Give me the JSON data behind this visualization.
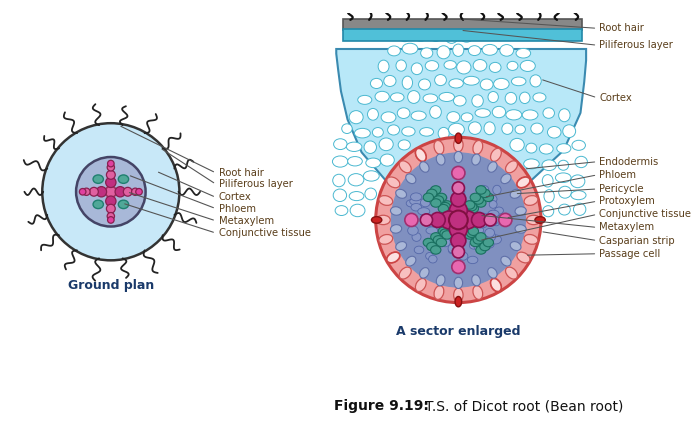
{
  "title": "Figure 9.19:  T.S. of Dicot root (Bean root)",
  "left_title": "Ground plan",
  "right_title": "A sector enlarged",
  "bg_color": "#ffffff",
  "label_color": "#5a3e1b",
  "line_color": "#555555",
  "left_labels": [
    "Root hair",
    "Piliferous layer",
    "Cortex",
    "Phloem",
    "Metaxylem",
    "Conjunctive tissue"
  ],
  "right_labels": [
    "Root hair",
    "Piliferous layer",
    "Cortex",
    "Endodermis",
    "Phloem",
    "Pericycle",
    "Protoxylem",
    "Conjunctive tissue",
    "Metaxylem",
    "Casparian strip",
    "Passage cell"
  ],
  "colors": {
    "bg_color": "#ffffff",
    "cortex_fill": "#b8e8f8",
    "cortex_cell_fill": "#ffffff",
    "cortex_cell_stroke": "#5bc8d8",
    "endodermis_pink": "#f4a0a0",
    "endodermis_red": "#cc4444",
    "phloem_teal": "#60b8b0",
    "metaxylem_pink": "#e060a0",
    "metaxylem_dark": "#c03080",
    "conjunctive_blue": "#8090c0",
    "protoxylem_pink": "#e080a0",
    "root_stele_bg": "#9090b8",
    "passage_cell_pink": "#f4c0c0",
    "casparian_red": "#cc3333",
    "hair_color": "#333333",
    "piliferous_gray": "#888888",
    "piliferous_blue": "#60c0d0",
    "pericycle_fill": "#9aa8d0"
  }
}
